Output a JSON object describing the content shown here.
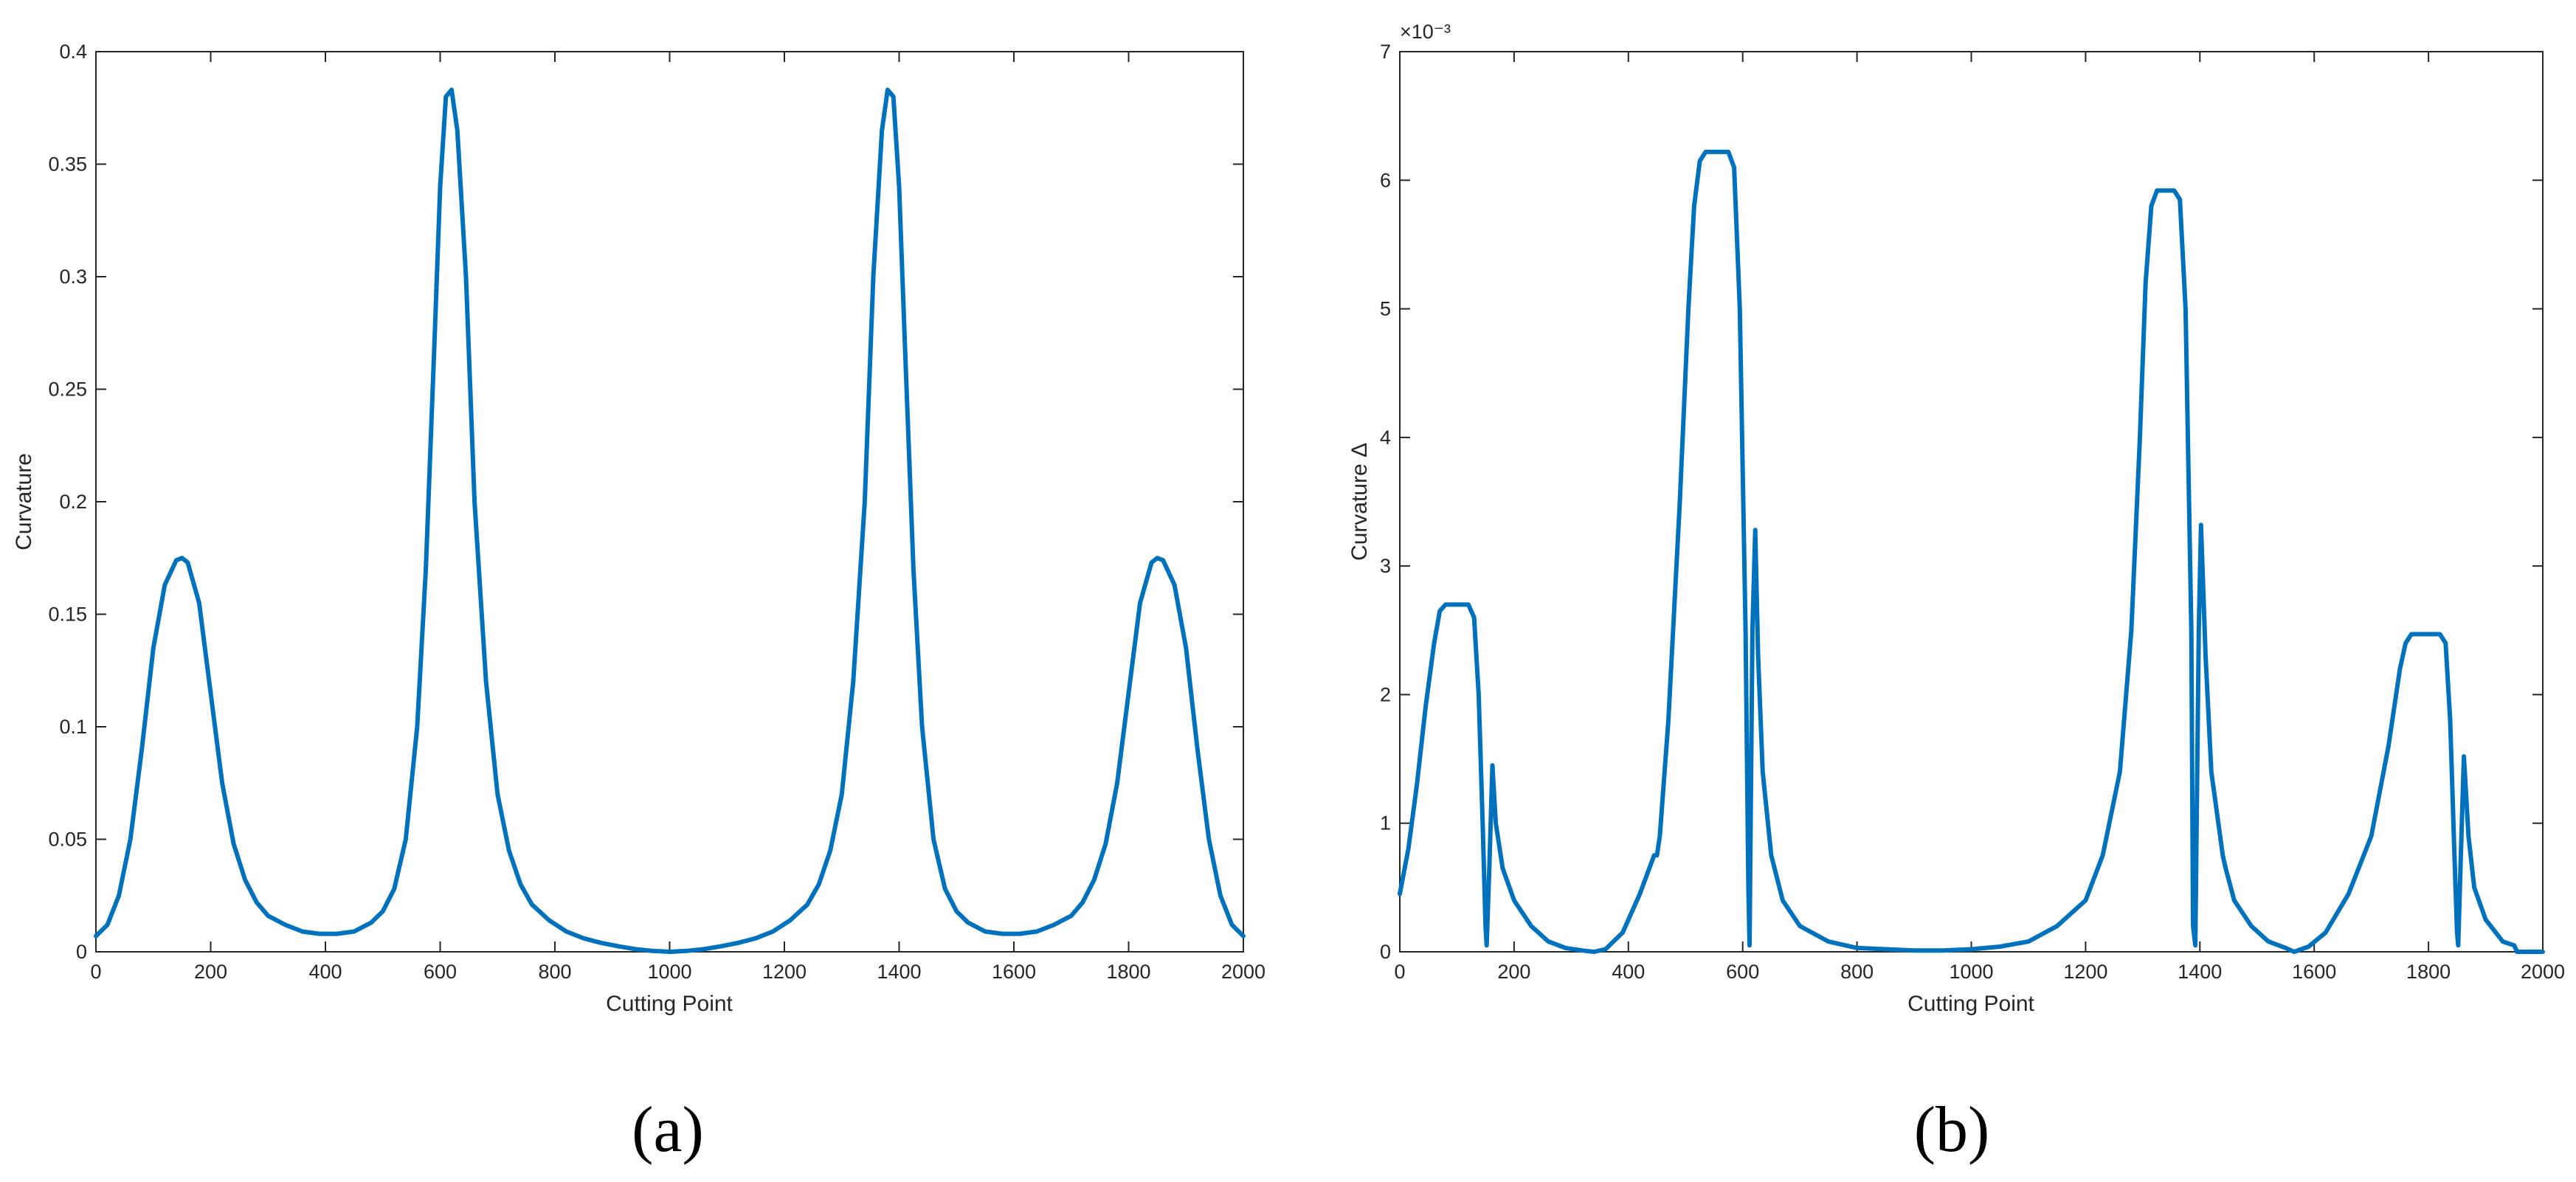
{
  "chart_data": [
    {
      "type": "line",
      "panel_label": "(a)",
      "xlabel": "Cutting Point",
      "ylabel": "Curvature",
      "xlim": [
        0,
        2000
      ],
      "ylim": [
        0,
        0.4
      ],
      "x_ticks": [
        "0",
        "200",
        "400",
        "600",
        "800",
        "1000",
        "1200",
        "1400",
        "1600",
        "1800",
        "2000"
      ],
      "y_ticks": [
        "0",
        "0.05",
        "0.1",
        "0.15",
        "0.2",
        "0.25",
        "0.3",
        "0.35",
        "0.4"
      ],
      "grid": false,
      "color": "#0072BD",
      "series": [
        {
          "x": [
            0,
            20,
            40,
            60,
            80,
            100,
            120,
            140,
            150,
            160,
            180,
            200,
            220,
            240,
            260,
            280,
            300,
            330,
            360,
            390,
            420,
            450,
            480,
            500,
            520,
            540,
            560,
            575,
            590,
            600,
            610,
            620,
            630,
            645,
            660,
            680,
            700,
            720,
            740,
            760,
            790,
            820,
            850,
            880,
            910,
            940,
            970,
            1000,
            1030,
            1060,
            1090,
            1120,
            1150,
            1180,
            1210,
            1240,
            1260,
            1280,
            1300,
            1320,
            1340,
            1355,
            1370,
            1380,
            1390,
            1400,
            1410,
            1425,
            1440,
            1460,
            1480,
            1500,
            1520,
            1550,
            1580,
            1610,
            1640,
            1670,
            1700,
            1720,
            1740,
            1760,
            1780,
            1800,
            1820,
            1840,
            1850,
            1860,
            1880,
            1900,
            1920,
            1940,
            1960,
            1980,
            2000
          ],
          "y": [
            0.007,
            0.012,
            0.025,
            0.05,
            0.09,
            0.135,
            0.163,
            0.174,
            0.175,
            0.173,
            0.155,
            0.115,
            0.075,
            0.048,
            0.032,
            0.022,
            0.016,
            0.012,
            0.009,
            0.008,
            0.008,
            0.009,
            0.013,
            0.018,
            0.028,
            0.05,
            0.1,
            0.17,
            0.27,
            0.34,
            0.38,
            0.383,
            0.365,
            0.3,
            0.2,
            0.12,
            0.07,
            0.045,
            0.03,
            0.021,
            0.014,
            0.009,
            0.006,
            0.004,
            0.0025,
            0.0012,
            0.0004,
            0.0,
            0.0004,
            0.0012,
            0.0025,
            0.004,
            0.006,
            0.009,
            0.014,
            0.021,
            0.03,
            0.045,
            0.07,
            0.12,
            0.2,
            0.3,
            0.365,
            0.383,
            0.38,
            0.34,
            0.27,
            0.17,
            0.1,
            0.05,
            0.028,
            0.018,
            0.013,
            0.009,
            0.008,
            0.008,
            0.009,
            0.012,
            0.016,
            0.022,
            0.032,
            0.048,
            0.075,
            0.115,
            0.155,
            0.173,
            0.175,
            0.174,
            0.163,
            0.135,
            0.09,
            0.05,
            0.025,
            0.012,
            0.007
          ]
        }
      ]
    },
    {
      "type": "line",
      "panel_label": "(b)",
      "xlabel": "Cutting Point",
      "ylabel": "Curvature Δ",
      "y_exponent": "×10⁻³",
      "xlim": [
        0,
        2000
      ],
      "ylim": [
        0,
        7
      ],
      "x_ticks": [
        "0",
        "200",
        "400",
        "600",
        "800",
        "1000",
        "1200",
        "1400",
        "1600",
        "1800",
        "2000"
      ],
      "y_ticks": [
        "0",
        "1",
        "2",
        "3",
        "4",
        "5",
        "6",
        "7"
      ],
      "grid": false,
      "color": "#0072BD",
      "series": [
        {
          "x": [
            0,
            15,
            30,
            45,
            60,
            70,
            80,
            100,
            120,
            130,
            138,
            145,
            150,
            152,
            157,
            162,
            168,
            180,
            200,
            230,
            260,
            290,
            320,
            340,
            360,
            390,
            420,
            445,
            450,
            455,
            470,
            490,
            505,
            515,
            525,
            535,
            545,
            575,
            585,
            595,
            605,
            610,
            612,
            617,
            622,
            627,
            635,
            650,
            670,
            700,
            750,
            800,
            850,
            900,
            950,
            1000,
            1050,
            1100,
            1150,
            1200,
            1230,
            1260,
            1280,
            1295,
            1305,
            1315,
            1325,
            1355,
            1365,
            1375,
            1385,
            1388,
            1392,
            1398,
            1402,
            1410,
            1420,
            1440,
            1445,
            1460,
            1490,
            1520,
            1550,
            1565,
            1590,
            1620,
            1660,
            1700,
            1730,
            1750,
            1760,
            1770,
            1780,
            1820,
            1830,
            1838,
            1845,
            1850,
            1852,
            1857,
            1862,
            1870,
            1880,
            1900,
            1930,
            1950,
            1955,
            1970,
            2000
          ],
          "y": [
            0.45,
            0.8,
            1.3,
            1.9,
            2.4,
            2.65,
            2.7,
            2.7,
            2.7,
            2.6,
            2.0,
            1.0,
            0.2,
            0.05,
            0.7,
            1.45,
            1.0,
            0.65,
            0.4,
            0.2,
            0.08,
            0.03,
            0.01,
            0.0,
            0.02,
            0.15,
            0.45,
            0.75,
            0.75,
            0.9,
            1.8,
            3.5,
            5.0,
            5.8,
            6.15,
            6.22,
            6.22,
            6.22,
            6.1,
            5.0,
            2.5,
            0.5,
            0.05,
            2.5,
            3.28,
            2.3,
            1.4,
            0.75,
            0.4,
            0.2,
            0.08,
            0.03,
            0.02,
            0.01,
            0.01,
            0.02,
            0.04,
            0.08,
            0.2,
            0.4,
            0.75,
            1.4,
            2.5,
            4.0,
            5.2,
            5.8,
            5.92,
            5.92,
            5.85,
            5.0,
            2.5,
            0.2,
            0.05,
            2.5,
            3.32,
            2.3,
            1.4,
            0.75,
            0.65,
            0.4,
            0.2,
            0.08,
            0.03,
            0.0,
            0.04,
            0.15,
            0.45,
            0.9,
            1.6,
            2.2,
            2.4,
            2.47,
            2.47,
            2.47,
            2.4,
            1.8,
            0.8,
            0.15,
            0.05,
            0.8,
            1.52,
            0.9,
            0.5,
            0.25,
            0.08,
            0.05,
            0.0,
            0.0,
            0.0
          ]
        }
      ]
    }
  ]
}
